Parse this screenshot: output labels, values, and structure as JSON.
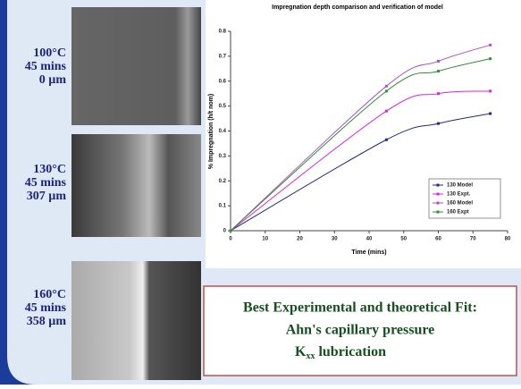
{
  "conditions": [
    {
      "temp": "100°C",
      "time": "45 mins",
      "depth": "0 µm"
    },
    {
      "temp": "130°C",
      "time": "45 mins",
      "depth": "307 µm"
    },
    {
      "temp": "160°C",
      "time": "45 mins",
      "depth": "358 µm"
    }
  ],
  "fit_box": {
    "title": "Best Experimental and theoretical Fit:",
    "line1": "Ahn's capillary pressure",
    "line2": {
      "symbol": "K",
      "subscript": "xx",
      "text": "lubrication"
    }
  },
  "chart_data": {
    "type": "line",
    "title": "Impregnation depth comparison and verification of model",
    "x_label": "Time (mins)",
    "y_label": "% Impregnation (h/t nom)",
    "x": [
      0,
      45,
      60,
      75
    ],
    "series": [
      {
        "name": "130 Model",
        "color": "#1f2a8c",
        "values": [
          0,
          0.365,
          0.43,
          0.47
        ]
      },
      {
        "name": "130 Expt.",
        "color": "#e020e0",
        "values": [
          0,
          0.48,
          0.55,
          0.56
        ]
      },
      {
        "name": "160 Model",
        "color": "#b050c8",
        "values": [
          0,
          0.58,
          0.68,
          0.745
        ]
      },
      {
        "name": "160 Expt",
        "color": "#2f8f3a",
        "values": [
          0,
          0.56,
          0.64,
          0.69
        ]
      }
    ],
    "xlim": [
      0,
      80
    ],
    "xticks": [
      0,
      10,
      20,
      30,
      40,
      50,
      60,
      70,
      80
    ],
    "ylim": [
      0,
      0.8
    ],
    "yticks": [
      0,
      0.1,
      0.2,
      0.3,
      0.4,
      0.5,
      0.6,
      0.7,
      0.8
    ],
    "grid": false,
    "legend": "lower-right"
  }
}
